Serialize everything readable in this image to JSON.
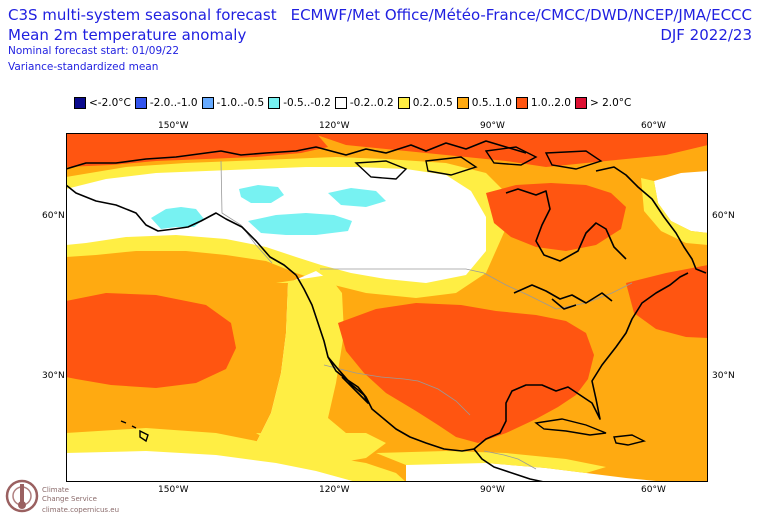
{
  "header": {
    "title_line1": "C3S multi-system seasonal forecast",
    "title_line2": "Mean 2m temperature anomaly",
    "start_line": "Nominal forecast start: 01/09/22",
    "mean_line": "Variance-standardized mean",
    "systems": "ECMWF/Met Office/Météo-France/CMCC/DWD/NCEP/JMA/ECCC",
    "season": "DJF 2022/23"
  },
  "legend": [
    {
      "label": "<-2.0°C",
      "color": "#0a0a8c"
    },
    {
      "label": "-2.0..-1.0",
      "color": "#3355ee"
    },
    {
      "label": "-1.0..-0.5",
      "color": "#66aaff"
    },
    {
      "label": "-0.5..-0.2",
      "color": "#77f2f2"
    },
    {
      "label": "-0.2..0.2",
      "color": "#ffffff"
    },
    {
      "label": "0.2..0.5",
      "color": "#ffee44"
    },
    {
      "label": "0.5..1.0",
      "color": "#ffaa11"
    },
    {
      "label": "1.0..2.0",
      "color": "#ff5511"
    },
    {
      "label": "> 2.0°C",
      "color": "#dd1133"
    }
  ],
  "axes": {
    "lon_top": [
      "150°W",
      "120°W",
      "90°W",
      "60°W"
    ],
    "lon_bottom": [
      "150°W",
      "120°W",
      "90°W",
      "60°W"
    ],
    "lat_left": [
      "60°N",
      "30°N"
    ],
    "lat_right": [
      "60°N",
      "30°N"
    ]
  },
  "logo": {
    "line1": "Climate",
    "line2": "Change Service",
    "line3": "climate.copernicus.eu"
  }
}
